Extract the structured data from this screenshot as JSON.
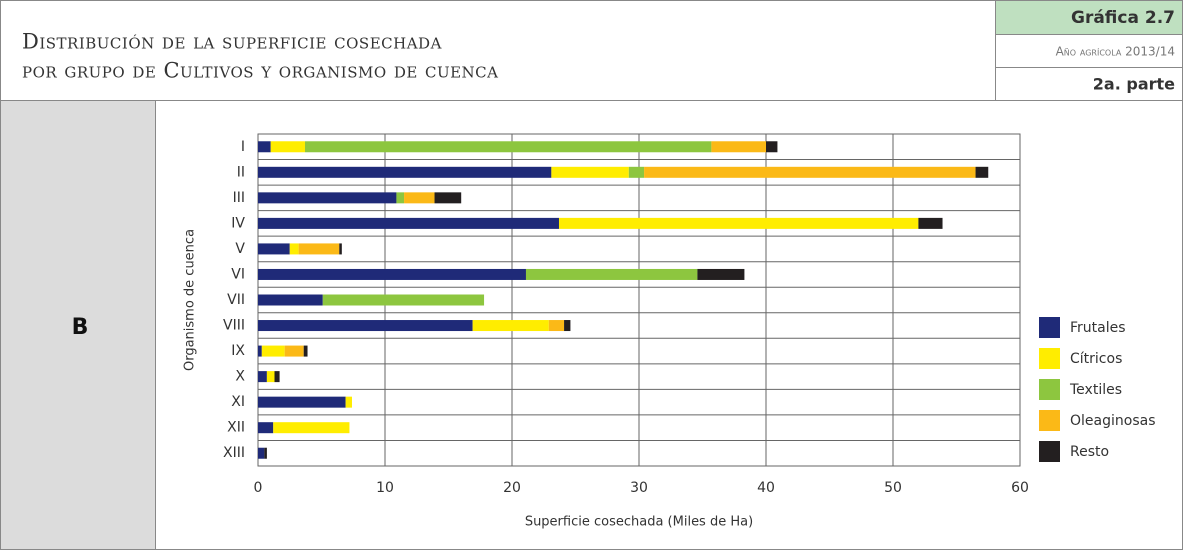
{
  "header": {
    "title": [
      "Distribución de la superficie cosechada",
      "por grupo de Cultivos y organismo de cuenca"
    ],
    "badge": "Gráfica 2.7",
    "year": "Año agrícola 2013/14",
    "part": "2a. parte"
  },
  "section_label": "B",
  "chart_data": {
    "type": "stacked-barh",
    "categories": [
      "I",
      "II",
      "III",
      "IV",
      "V",
      "VI",
      "VII",
      "VIII",
      "IX",
      "X",
      "XI",
      "XII",
      "XIII"
    ],
    "series": [
      {
        "name": "Frutales",
        "color": "#1f2a78",
        "values": [
          1.0,
          23.1,
          10.9,
          23.7,
          2.5,
          21.1,
          5.1,
          16.9,
          0.3,
          0.7,
          6.9,
          1.2,
          0.5
        ]
      },
      {
        "name": "Cítricos",
        "color": "#ffed00",
        "values": [
          2.7,
          6.1,
          0,
          28.3,
          0.7,
          0,
          0,
          6.0,
          1.8,
          0.6,
          0.5,
          6.0,
          0
        ]
      },
      {
        "name": "Textiles",
        "color": "#8dc63f",
        "values": [
          32,
          1.2,
          0.6,
          0,
          0,
          13.5,
          12.7,
          0,
          0,
          0,
          0,
          0,
          0
        ]
      },
      {
        "name": "Oleaginosas",
        "color": "#fbb917",
        "values": [
          4.3,
          26.1,
          2.4,
          0,
          3.2,
          0,
          0,
          1.2,
          1.5,
          0,
          0,
          0,
          0
        ]
      },
      {
        "name": "Resto",
        "color": "#231f20",
        "values": [
          0.9,
          1.0,
          2.1,
          1.9,
          0.2,
          3.7,
          0,
          0.5,
          0.3,
          0.4,
          0,
          0,
          0.2
        ]
      }
    ],
    "xlim": [
      0,
      60
    ],
    "xticks": [
      0,
      10,
      20,
      30,
      40,
      50,
      60
    ],
    "xlabel": "Superficie cosechada  (Miles de Ha)",
    "ylabel": "Organismo de cuenca",
    "grid": true,
    "legend": "right"
  }
}
